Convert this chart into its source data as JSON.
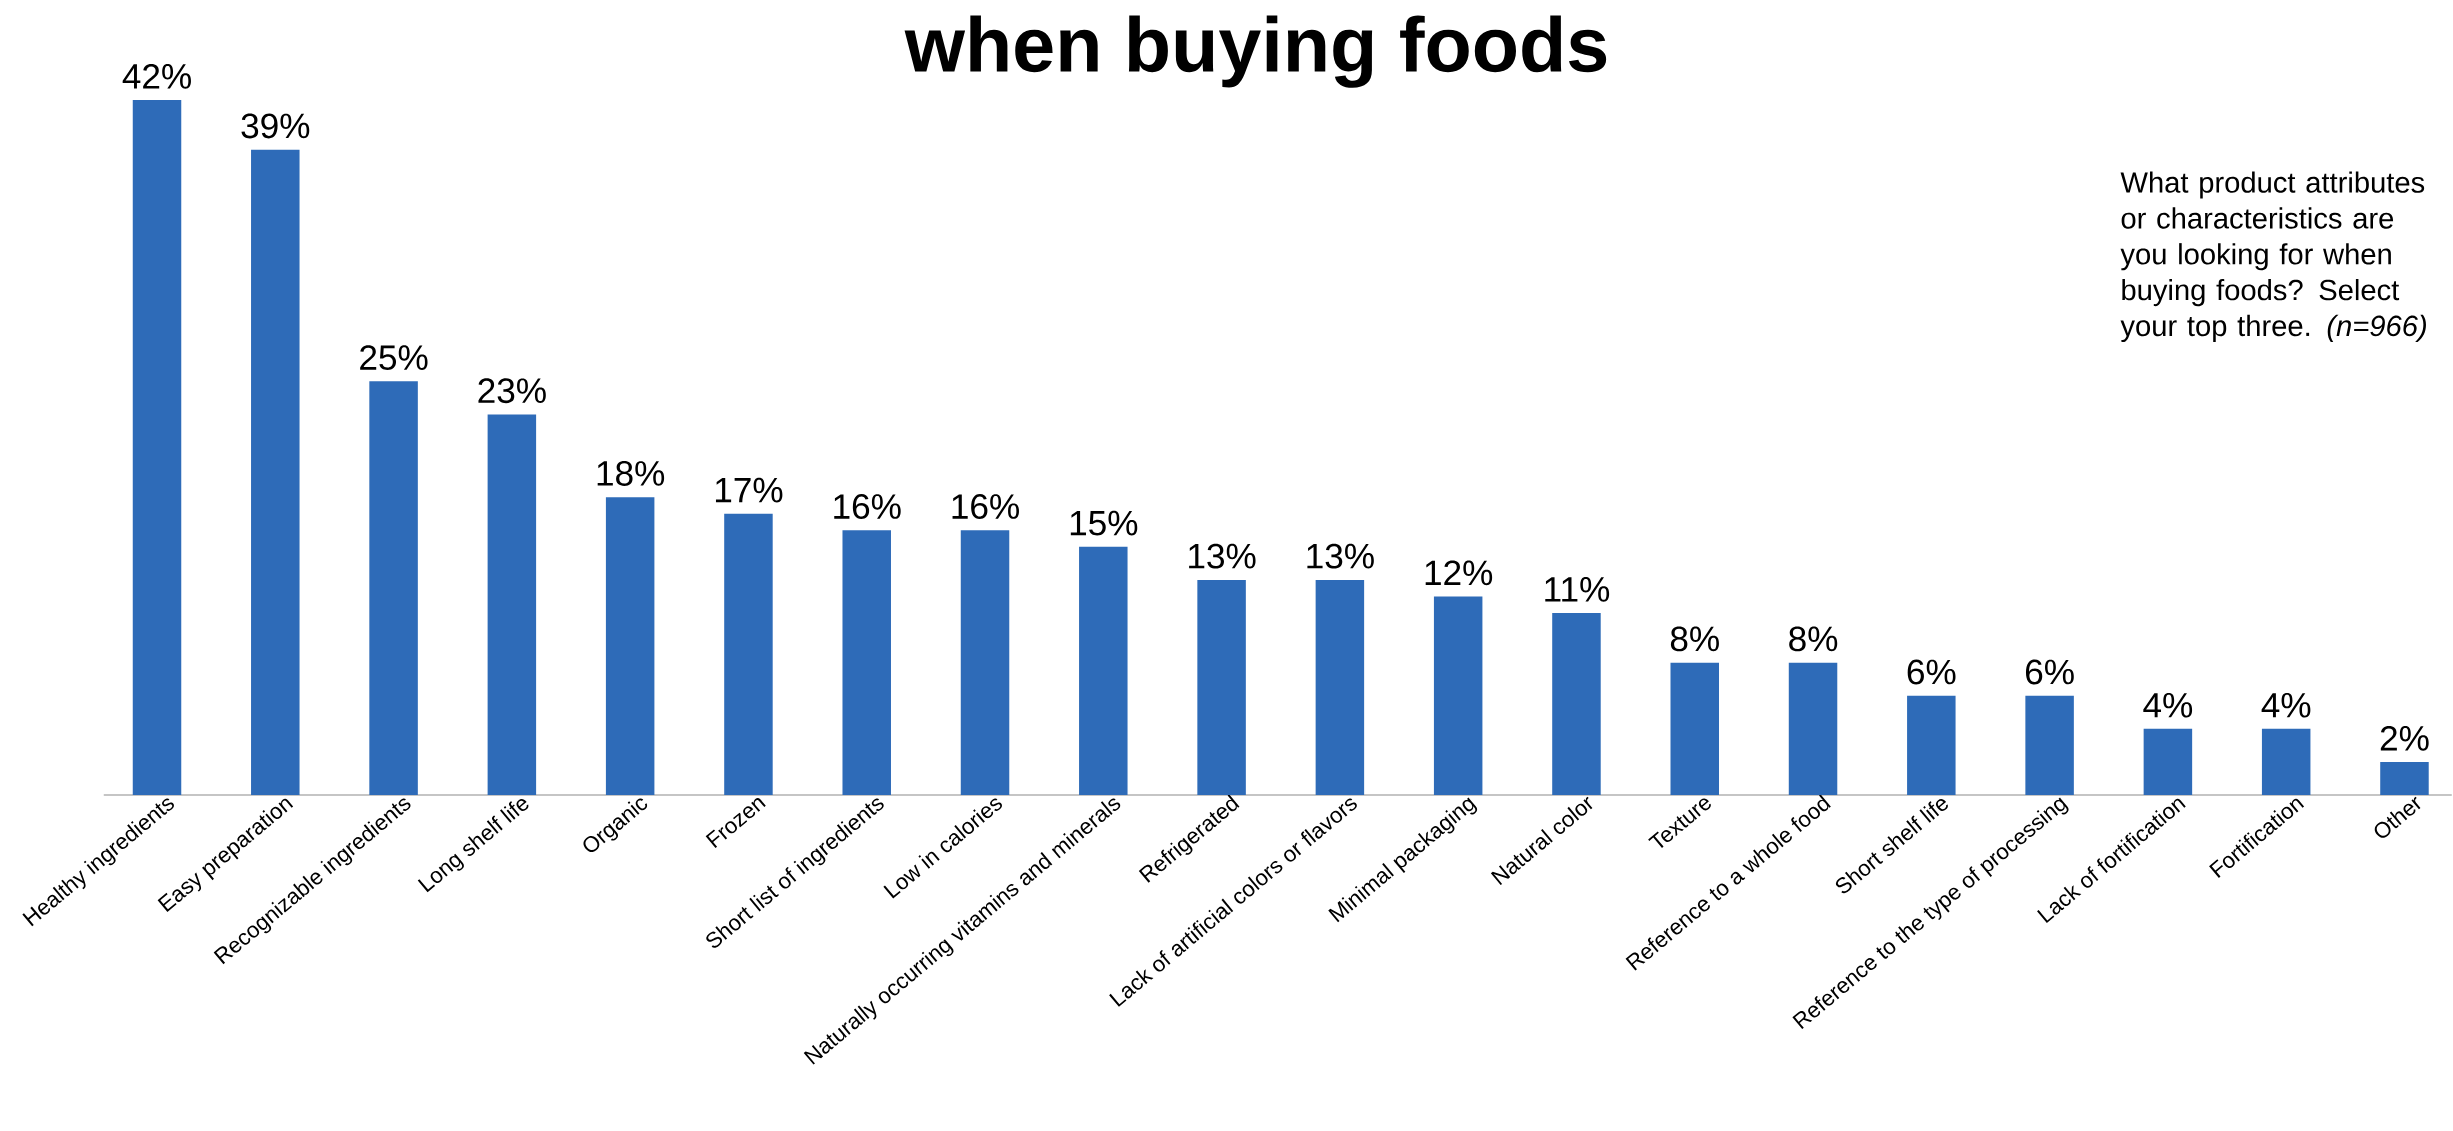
{
  "chart_data": {
    "type": "bar",
    "title": "when buying foods",
    "categories": [
      "Healthy ingredients",
      "Easy preparation",
      "Recognizable ingredients",
      "Long shelf life",
      "Organic",
      "Frozen",
      "Short list of ingredients",
      "Low in calories",
      "Naturally occurring vitamins and minerals",
      "Refrigerated",
      "Lack of artificial colors or flavors",
      "Minimal packaging",
      "Natural color",
      "Texture",
      "Reference to a whole food",
      "Short shelf life",
      "Reference to the type of processing",
      "Lack of fortification",
      "Fortification",
      "Other"
    ],
    "values": [
      42,
      39,
      25,
      23,
      18,
      17,
      16,
      16,
      15,
      13,
      13,
      12,
      11,
      8,
      8,
      6,
      6,
      4,
      4,
      2
    ],
    "value_labels": [
      "42%",
      "39%",
      "25%",
      "23%",
      "18%",
      "17%",
      "16%",
      "16%",
      "15%",
      "13%",
      "13%",
      "12%",
      "11%",
      "8%",
      "8%",
      "6%",
      "6%",
      "4%",
      "4%",
      "2%"
    ],
    "color": "#2e6bb8",
    "annotations": [
      "What product attributes or characteristics are you looking for when buying foods? Select your top three. *(n=966)*"
    ]
  }
}
